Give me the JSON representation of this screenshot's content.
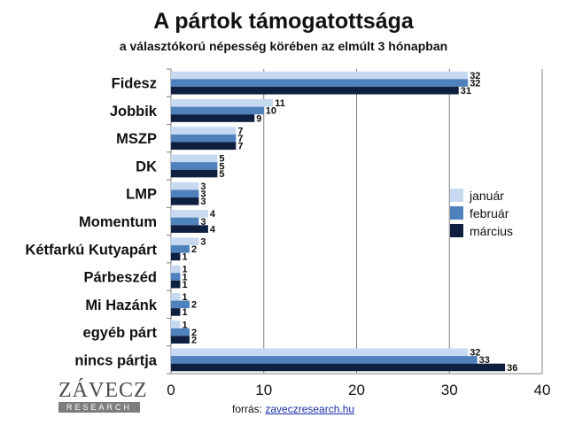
{
  "chart_data": {
    "type": "bar",
    "orientation": "horizontal",
    "title": "A pártok támogatottsága",
    "subtitle": "a választókorú népesség körében az elmúlt 3 hónapban",
    "categories": [
      "Fidesz",
      "Jobbik",
      "MSZP",
      "DK",
      "LMP",
      "Momentum",
      "Kétfarkú Kutyapárt",
      "Párbeszéd",
      "Mi Hazánk",
      "egyéb párt",
      "nincs pártja"
    ],
    "series": [
      {
        "name": "január",
        "color": "#c6d9f1",
        "values": [
          32,
          11,
          7,
          5,
          3,
          4,
          3,
          1,
          1,
          1,
          32
        ]
      },
      {
        "name": "február",
        "color": "#4f81bd",
        "values": [
          32,
          10,
          7,
          5,
          3,
          3,
          2,
          1,
          2,
          2,
          33
        ]
      },
      {
        "name": "március",
        "color": "#0f1f40",
        "values": [
          31,
          9,
          7,
          5,
          3,
          4,
          1,
          1,
          1,
          2,
          36
        ]
      }
    ],
    "xlim": [
      0,
      40
    ],
    "xticks": [
      "0",
      "10",
      "20",
      "30",
      "40"
    ],
    "grid": true,
    "legend_position": "right"
  },
  "footer": {
    "source_prefix": "forrás:",
    "source_link": "zaveczresearch.hu",
    "logo_name": "ZÁVECZ",
    "logo_sub": "RESEARCH"
  }
}
